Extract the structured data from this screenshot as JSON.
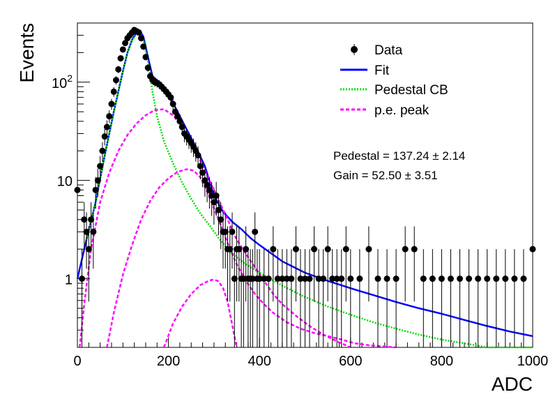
{
  "chart_data": {
    "type": "scatter",
    "xlabel": "ADC",
    "ylabel": "Events",
    "xlim": [
      0,
      1000
    ],
    "ylim": [
      0.2,
      400
    ],
    "yscale": "log",
    "x_ticks": [
      {
        "value": 0,
        "label": "0"
      },
      {
        "value": 200,
        "label": "200"
      },
      {
        "value": 400,
        "label": "400"
      },
      {
        "value": 600,
        "label": "600"
      },
      {
        "value": 800,
        "label": "800"
      },
      {
        "value": 1000,
        "label": "1000"
      }
    ],
    "y_ticks": [
      {
        "value": 1,
        "label": "1",
        "exp": ""
      },
      {
        "value": 10,
        "label": "10",
        "exp": ""
      },
      {
        "value": 100,
        "label": "10",
        "exp": "2"
      }
    ],
    "legend_position": "top-right",
    "legend": [
      {
        "label": "Data",
        "style": "marker",
        "color": "#000000"
      },
      {
        "label": "Fit",
        "style": "solid",
        "color": "#0000ff"
      },
      {
        "label": "Pedestal CB",
        "style": "dotted",
        "color": "#00dd00"
      },
      {
        "label": "p.e. peak",
        "style": "dashed",
        "color": "#ff00ff"
      }
    ],
    "annotations": [
      "Pedestal = 137.24 ± 2.14",
      "Gain = 52.50 ± 3.51"
    ],
    "fit_parameters": {
      "pedestal": 137.24,
      "pedestal_error": 2.14,
      "gain": 52.5,
      "gain_error": 3.51
    },
    "series": [
      {
        "name": "Data",
        "kind": "points",
        "color": "#000000",
        "x": [
          0,
          10,
          15,
          20,
          25,
          30,
          35,
          40,
          45,
          50,
          55,
          60,
          65,
          70,
          75,
          80,
          85,
          90,
          95,
          100,
          105,
          110,
          115,
          120,
          125,
          130,
          135,
          140,
          145,
          150,
          155,
          160,
          165,
          170,
          175,
          180,
          185,
          190,
          195,
          200,
          205,
          210,
          215,
          220,
          225,
          230,
          235,
          240,
          245,
          250,
          255,
          260,
          265,
          270,
          275,
          280,
          285,
          290,
          295,
          300,
          305,
          310,
          315,
          320,
          325,
          330,
          335,
          340,
          345,
          350,
          355,
          360,
          365,
          370,
          375,
          380,
          385,
          390,
          395,
          400,
          410,
          420,
          430,
          440,
          450,
          460,
          470,
          480,
          490,
          500,
          510,
          520,
          530,
          540,
          550,
          560,
          570,
          580,
          590,
          600,
          620,
          640,
          660,
          680,
          700,
          720,
          740,
          760,
          780,
          800,
          820,
          840,
          860,
          880,
          900,
          920,
          940,
          960,
          980,
          1000
        ],
        "y": [
          8,
          1,
          4,
          3,
          2,
          4,
          3,
          8,
          10,
          14,
          20,
          28,
          35,
          45,
          60,
          80,
          105,
          135,
          175,
          215,
          250,
          280,
          300,
          320,
          340,
          330,
          320,
          280,
          230,
          180,
          140,
          115,
          105,
          100,
          98,
          95,
          90,
          85,
          80,
          75,
          70,
          60,
          50,
          45,
          40,
          35,
          30,
          28,
          26,
          24,
          22,
          20,
          18,
          14,
          12,
          10,
          9,
          8,
          7,
          6,
          7,
          5,
          4,
          3,
          3,
          2,
          2,
          3,
          1,
          2,
          2,
          1,
          1,
          2,
          1,
          1,
          1,
          3,
          1,
          1,
          1,
          1,
          2,
          1,
          1,
          1,
          1,
          2,
          1,
          1,
          1,
          2,
          1,
          1,
          2,
          1,
          1,
          1,
          2,
          1,
          1,
          2,
          1,
          1,
          1,
          2,
          2,
          1,
          1,
          1,
          1,
          1,
          1,
          1,
          1,
          1,
          1,
          1,
          1,
          2
        ]
      },
      {
        "name": "Fit",
        "kind": "curve",
        "color": "#0000ff",
        "x": [
          0,
          20,
          40,
          60,
          80,
          100,
          110,
          120,
          130,
          137,
          145,
          155,
          165,
          180,
          200,
          220,
          240,
          260,
          280,
          300,
          320,
          340,
          360,
          380,
          400,
          450,
          500,
          550,
          600,
          650,
          700,
          750,
          800,
          850,
          900,
          950,
          1000
        ],
        "y": [
          1,
          2.5,
          6,
          18,
          50,
          130,
          200,
          270,
          320,
          335,
          290,
          180,
          115,
          100,
          75,
          50,
          33,
          22,
          14,
          7,
          4.8,
          3.8,
          3.2,
          2.6,
          2.2,
          1.5,
          1.15,
          0.95,
          0.8,
          0.68,
          0.58,
          0.5,
          0.44,
          0.38,
          0.33,
          0.29,
          0.26
        ]
      },
      {
        "name": "Pedestal CB",
        "kind": "curve",
        "color": "#00dd00",
        "x": [
          20,
          40,
          60,
          80,
          100,
          110,
          120,
          130,
          137,
          145,
          155,
          165,
          175,
          190,
          210,
          230,
          250,
          270,
          290,
          310,
          330,
          350,
          370,
          400,
          450,
          500,
          550,
          600,
          650,
          700,
          750,
          800,
          850,
          900,
          950,
          1000
        ],
        "y": [
          2.5,
          6,
          18,
          50,
          130,
          200,
          265,
          310,
          320,
          270,
          160,
          80,
          45,
          25,
          15,
          9.5,
          6.5,
          4.6,
          3.5,
          2.6,
          2.0,
          1.65,
          1.4,
          1.15,
          0.85,
          0.65,
          0.52,
          0.43,
          0.36,
          0.31,
          0.27,
          0.24,
          0.22,
          0.2,
          0.19,
          0.18
        ]
      },
      {
        "name": "p.e. peak 1",
        "kind": "curve",
        "color": "#ff00ff",
        "x": [
          5,
          15,
          30,
          50,
          70,
          90,
          110,
          130,
          150,
          170,
          190,
          210,
          230,
          250,
          270,
          290,
          310,
          330,
          350,
          370,
          390,
          410,
          430,
          450,
          480,
          510,
          540,
          570,
          600
        ],
        "y": [
          0.2,
          0.55,
          2,
          6,
          12,
          20,
          29,
          38,
          46,
          52,
          53,
          46,
          35,
          24,
          16,
          10,
          6.3,
          4,
          2.5,
          1.8,
          1.3,
          0.95,
          0.7,
          0.55,
          0.42,
          0.33,
          0.27,
          0.23,
          0.2
        ]
      },
      {
        "name": "p.e. peak 2",
        "kind": "curve",
        "color": "#ff00ff",
        "x": [
          65,
          80,
          100,
          120,
          140,
          160,
          180,
          200,
          220,
          240,
          255,
          270,
          290,
          310,
          330,
          350,
          370,
          390,
          410,
          430,
          460,
          490,
          520,
          550,
          580,
          610,
          640,
          670,
          700
        ],
        "y": [
          0.2,
          0.45,
          1.1,
          2.2,
          4,
          6.2,
          8.5,
          10.5,
          12.2,
          13,
          12.6,
          10.8,
          6.8,
          4,
          2.3,
          1.4,
          0.95,
          0.7,
          0.55,
          0.45,
          0.36,
          0.31,
          0.28,
          0.26,
          0.24,
          0.22,
          0.21,
          0.205,
          0.2
        ]
      },
      {
        "name": "p.e. peak 3",
        "kind": "curve",
        "color": "#ff00ff",
        "x": [
          190,
          210,
          230,
          250,
          270,
          290,
          300,
          310,
          320,
          330,
          340,
          350
        ],
        "y": [
          0.2,
          0.35,
          0.52,
          0.7,
          0.86,
          0.96,
          0.98,
          0.94,
          0.8,
          0.58,
          0.34,
          0.2
        ]
      }
    ]
  }
}
